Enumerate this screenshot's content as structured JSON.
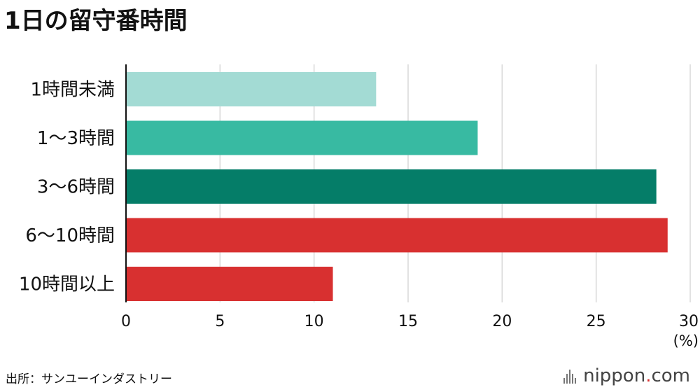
{
  "title": "1日の留守番時間",
  "source": "出所：サンユーインダストリー",
  "brand": {
    "name": "nippon",
    "dot": ".",
    "suffix": "com",
    "logo_icon": "barcode-mark-icon"
  },
  "colors": {
    "grid": "#d8d8d8",
    "axis": "#111111",
    "text": "#111111"
  },
  "chart_data": {
    "type": "bar",
    "orientation": "horizontal",
    "categories": [
      "1時間未満",
      "1〜3時間",
      "3〜6時間",
      "6〜10時間",
      "10時間以上"
    ],
    "values": [
      13.3,
      18.7,
      28.2,
      28.8,
      11.0
    ],
    "colors": [
      "#a3dbd4",
      "#38baa2",
      "#057d68",
      "#d83030",
      "#d83030"
    ],
    "xlim": [
      0,
      30
    ],
    "xticks": [
      0,
      5,
      10,
      15,
      20,
      25,
      30
    ],
    "unit_label": "(%)",
    "grid": true
  }
}
